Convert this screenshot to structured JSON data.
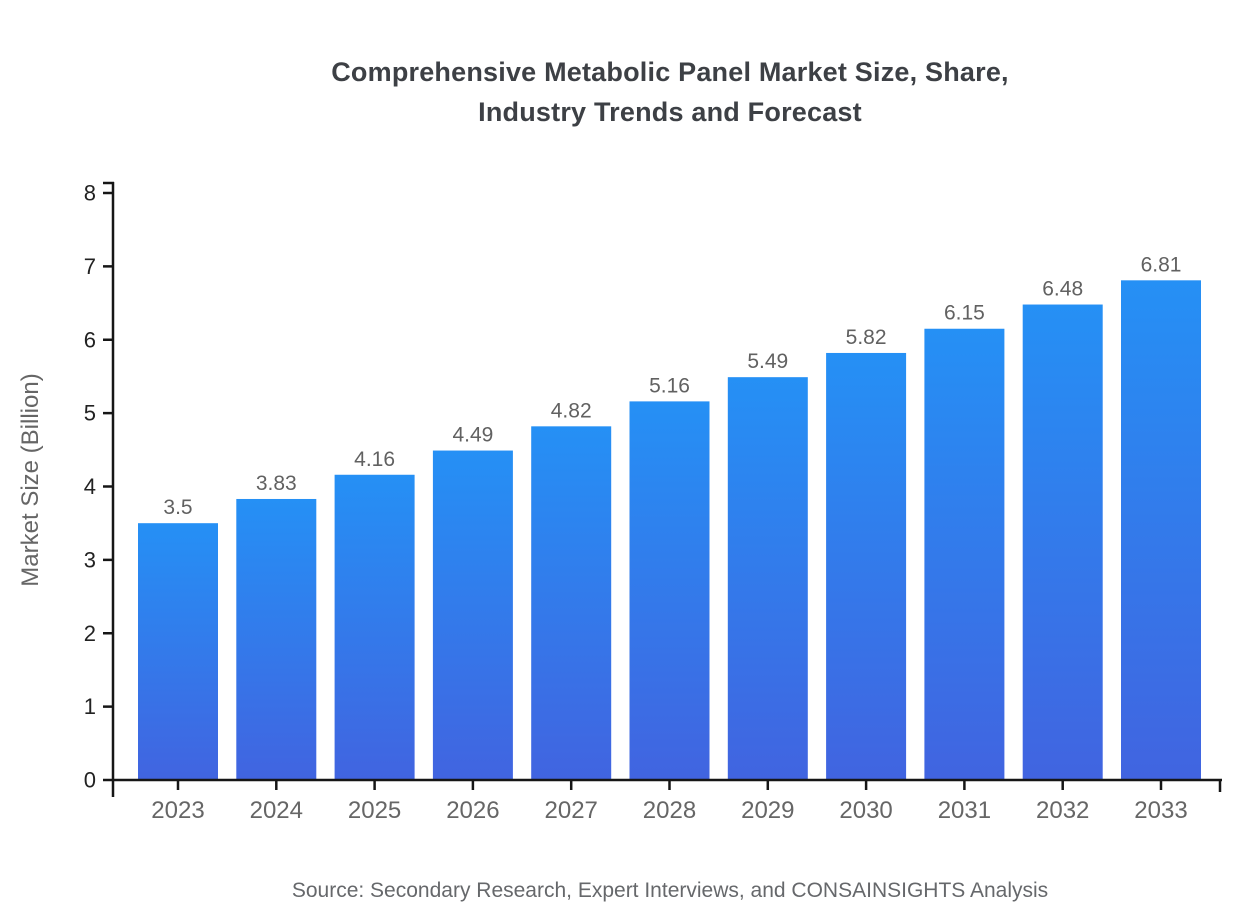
{
  "title": {
    "lines": [
      "Comprehensive Metabolic Panel Market Size, Share,",
      "Industry Trends and Forecast"
    ]
  },
  "source": {
    "text": "Source: Secondary Research, Expert Interviews, and CONSAINSIGHTS Analysis"
  },
  "chart_data": {
    "type": "bar",
    "title": "Comprehensive Metabolic Panel Market Size, Share, Industry Trends and Forecast",
    "categories": [
      "2023",
      "2024",
      "2025",
      "2026",
      "2027",
      "2028",
      "2029",
      "2030",
      "2031",
      "2032",
      "2033"
    ],
    "values": [
      3.5,
      3.83,
      4.16,
      4.49,
      4.82,
      5.16,
      5.49,
      5.82,
      6.15,
      6.48,
      6.81
    ],
    "value_labels": [
      "3.5",
      "3.83",
      "4.16",
      "4.49",
      "4.82",
      "5.16",
      "5.49",
      "5.82",
      "6.15",
      "6.48",
      "6.81"
    ],
    "xlabel": "",
    "ylabel": "Market Size (Billion)",
    "ylim": [
      0,
      8
    ],
    "yticks": [
      0,
      1,
      2,
      3,
      4,
      5,
      6,
      7,
      8
    ],
    "grid": false,
    "legend": "none",
    "bar_gradient_top": "#2590f5",
    "bar_gradient_bottom": "#4164e0"
  },
  "colors": {
    "axis": "#161616",
    "y_tick_label": "#222222",
    "category_label": "#666666",
    "value_label": "#616161",
    "axis_title": "#666666",
    "title_text": "#3d4045",
    "source_text": "#66686b"
  }
}
